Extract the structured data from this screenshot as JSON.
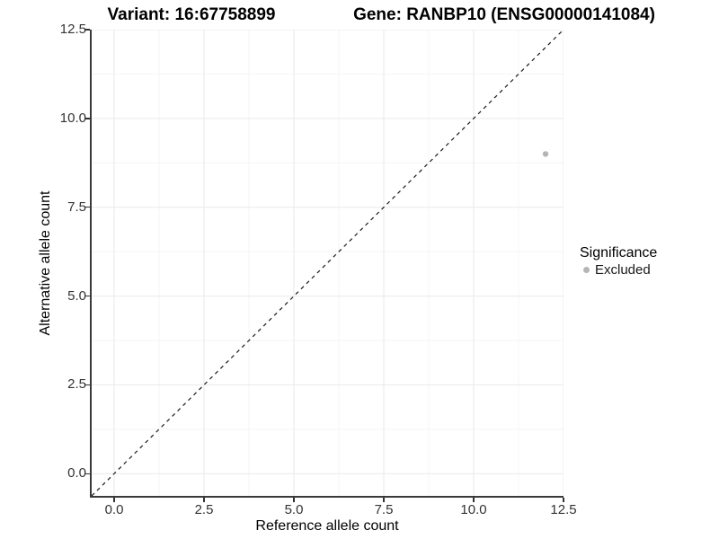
{
  "figure": {
    "title_variant": "Variant: 16:67758899",
    "title_gene": "Gene: RANBP10 (ENSG00000141084)"
  },
  "chart_data": {
    "type": "scatter",
    "xlabel": "Reference allele count",
    "ylabel": "Alternative allele count",
    "xlim": [
      -0.625,
      12.5
    ],
    "ylim": [
      -0.625,
      12.5
    ],
    "x_ticks": [
      0,
      2.5,
      5,
      7.5,
      10,
      12.5
    ],
    "x_tick_labels": [
      "0.0",
      "2.5",
      "5.0",
      "7.5",
      "10.0",
      "12.5"
    ],
    "y_ticks": [
      0,
      2.5,
      5,
      7.5,
      10,
      12.5
    ],
    "y_tick_labels": [
      "0.0",
      "2.5",
      "5.0",
      "7.5",
      "10.0",
      "12.5"
    ],
    "minor_ticks": [
      1.25,
      3.75,
      6.25,
      8.75,
      11.25
    ],
    "grid": "major+minor",
    "identity_line": {
      "type": "dashed",
      "slope": 1,
      "intercept": 0
    },
    "series": [
      {
        "name": "Excluded",
        "color": "#b5b5b5",
        "points": [
          {
            "x": 12,
            "y": 9
          }
        ]
      }
    ],
    "legend": {
      "title": "Significance",
      "position": "right",
      "items": [
        {
          "label": "Excluded",
          "color": "#b5b5b5"
        }
      ]
    },
    "colors": {
      "background": "#ffffff",
      "grid_major": "#e9e9e9",
      "grid_minor": "#f4f4f4",
      "axis_line": "#3a3a3a",
      "tick_text": "#333333",
      "identity_line": "#1a1a1a"
    }
  }
}
